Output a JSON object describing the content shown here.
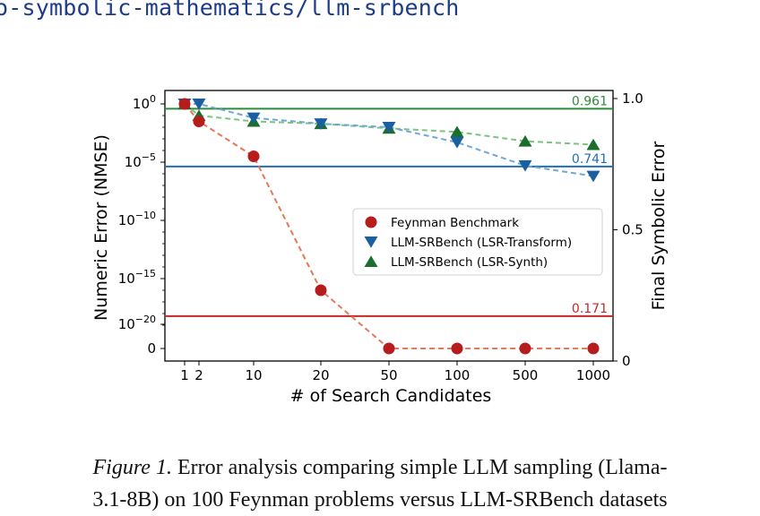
{
  "header": {
    "url_text": "o-symbolic-mathematics/llm-srbench"
  },
  "chart_data": {
    "type": "line",
    "categories": [
      "1",
      "2",
      "10",
      "20",
      "50",
      "100",
      "500",
      "1000"
    ],
    "xlabel": "# of Search Candidates",
    "ylabel": "Numeric Error (NMSE)",
    "y2label": "Final Symbolic Error",
    "y_ticks": [
      "10^0",
      "10^-5",
      "10^-10",
      "10^-15",
      "10^-20",
      "0"
    ],
    "y_scale": "log",
    "ylim": [
      -21,
      0.4
    ],
    "y2_ticks": [
      "1.0",
      "0.5",
      "0"
    ],
    "y2lim": [
      0,
      1.0
    ],
    "legend_position": "center-right",
    "series": [
      {
        "name": "Feynman Benchmark",
        "marker": "circle",
        "color": "#b71c1c",
        "line_color": "#e8775a",
        "log10_values": [
          0,
          -1.5,
          -4.5,
          -16,
          -21,
          -21,
          -21,
          -21
        ],
        "final_error": 0.171
      },
      {
        "name": "LLM-SRBench (LSR-Transform)",
        "marker": "triangle-down",
        "color": "#1c5fa0",
        "line_color": "#6fa8d6",
        "log10_values": [
          0,
          0,
          -1.2,
          -1.7,
          -2.0,
          -3.3,
          -5.3,
          -6.2
        ],
        "final_error": 0.741
      },
      {
        "name": "LLM-SRBench (LSR-Synth)",
        "marker": "triangle-up",
        "color": "#1b6e2e",
        "line_color": "#7bc47f",
        "log10_values": [
          0,
          -1.0,
          -1.5,
          -1.7,
          -2.1,
          -2.4,
          -3.2,
          -3.5
        ],
        "final_error": 0.961
      }
    ],
    "reference_lines": [
      {
        "label": "0.961",
        "value": 0.961,
        "color": "#2e8b3e"
      },
      {
        "label": "0.741",
        "value": 0.741,
        "color": "#1f6fb5"
      },
      {
        "label": "0.171",
        "value": 0.171,
        "color": "#c62828"
      }
    ]
  },
  "caption": {
    "figure_label": "Figure 1.",
    "line1": "Error analysis comparing simple LLM sampling (Llama-",
    "line2": "3.1-8B) on 100 Feynman problems versus LLM-SRBench datasets"
  }
}
